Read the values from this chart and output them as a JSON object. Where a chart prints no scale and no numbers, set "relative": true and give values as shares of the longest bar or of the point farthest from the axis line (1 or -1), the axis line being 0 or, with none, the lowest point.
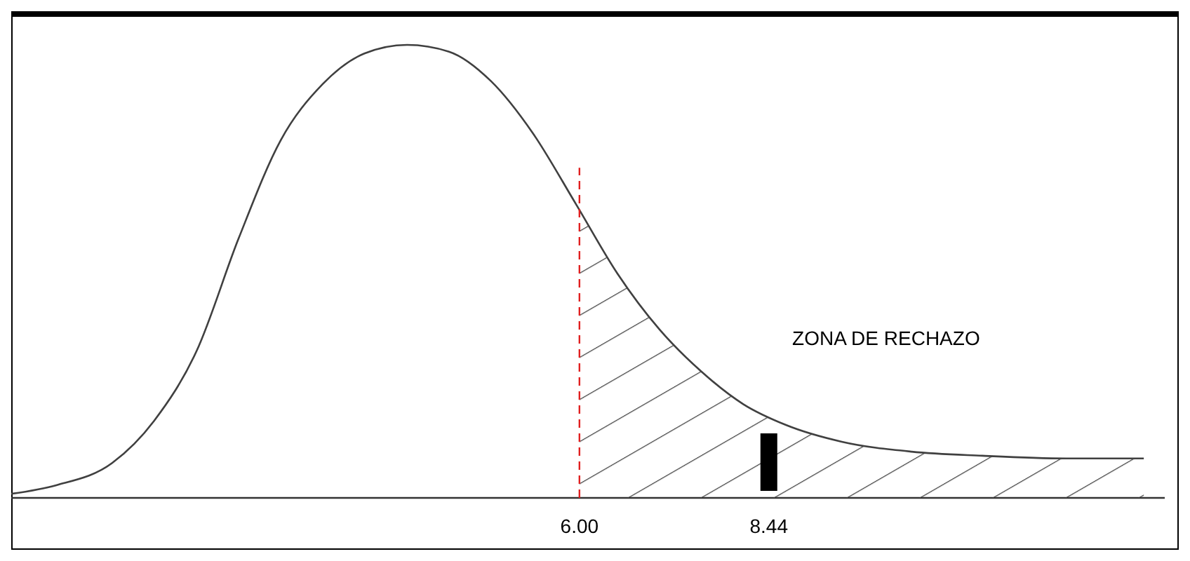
{
  "chart_data": {
    "type": "line",
    "relative": true,
    "x": [
      -1.32,
      -0.74,
      -0.02,
      0.52,
      1.07,
      1.61,
      2.15,
      2.69,
      3.23,
      3.78,
      4.32,
      4.86,
      5.4,
      5.95,
      6.49,
      7.03,
      7.57,
      8.11,
      8.66,
      9.38,
      10.28,
      11.19,
      12.27,
      13.27
    ],
    "series": [
      {
        "color": "#404040",
        "values": [
          0.009,
          0.028,
          0.077,
          0.17,
          0.325,
          0.573,
          0.789,
          0.913,
          0.981,
          1,
          0.985,
          0.92,
          0.805,
          0.65,
          0.495,
          0.372,
          0.279,
          0.207,
          0.161,
          0.124,
          0.102,
          0.093,
          0.087,
          0.087
        ]
      }
    ],
    "xlim": [
      -1.32,
      13.54
    ],
    "xticks": [
      {
        "value": 6,
        "label": "6.00"
      },
      {
        "value": 8.44,
        "label": "8.44"
      }
    ],
    "tick_labels": "x",
    "grid": false,
    "marker": "none",
    "line_style": "solid",
    "ref_lines": [
      {
        "axis": "x",
        "value": 6,
        "color": "#e02020",
        "line_style": "dashed"
      },
      {
        "axis": "x",
        "value": 8.44,
        "color": "#000000",
        "line_style": "solid"
      }
    ],
    "bands": [
      {
        "axis": "x",
        "from": 6,
        "to": 13.54,
        "label": "ZONA DE RECHAZO",
        "color": "#404040"
      }
    ]
  }
}
